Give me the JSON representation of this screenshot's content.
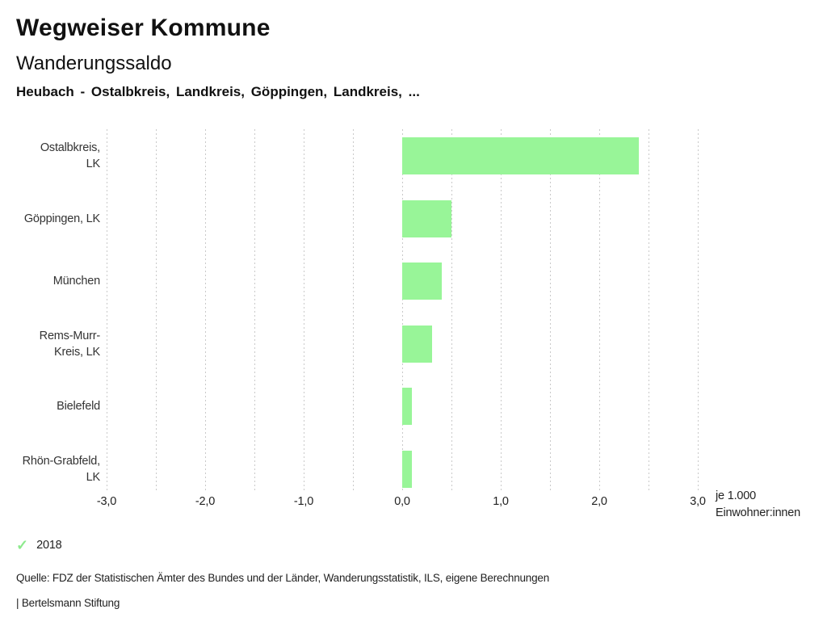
{
  "header": {
    "title": "Wegweiser Kommune",
    "subtitle": "Wanderungssaldo",
    "selection": "Heubach - Ostalbkreis, Landkreis, Göppingen, Landkreis, ..."
  },
  "chart_data": {
    "type": "bar",
    "orientation": "horizontal",
    "categories": [
      "Ostalbkreis,\nLK",
      "Göppingen, LK",
      "München",
      "Rems-Murr-\nKreis, LK",
      "Bielefeld",
      "Rhön-Grabfeld,\nLK"
    ],
    "series": [
      {
        "name": "2018",
        "values": [
          2.4,
          0.5,
          0.4,
          0.3,
          0.1,
          0.1
        ]
      }
    ],
    "xlabel": "je 1.000 Einwohner:innen",
    "unit_label": "je 1.000\nEinwohner:innen",
    "xlim": [
      -3.0,
      3.0
    ],
    "grid_step": 0.5,
    "x_ticks": [
      -3,
      -2,
      -1,
      0,
      1,
      2,
      3
    ],
    "x_tick_labels": [
      "-3,0",
      "-2,0",
      "-1,0",
      "0,0",
      "1,0",
      "2,0",
      "3,0"
    ],
    "grid": true,
    "legend_position": "bottom-left",
    "bar_color": "#98f598",
    "grid_color": "#c9c9c9"
  },
  "legend": {
    "check_icon": "✓",
    "items": [
      {
        "label": "2018",
        "color": "#8dea8d"
      }
    ]
  },
  "footer": {
    "source": "Quelle: FDZ der Statistischen Ämter des Bundes und der Länder, Wanderungsstatistik, ILS, eigene Berechnungen",
    "attribution": "| Bertelsmann Stiftung"
  }
}
